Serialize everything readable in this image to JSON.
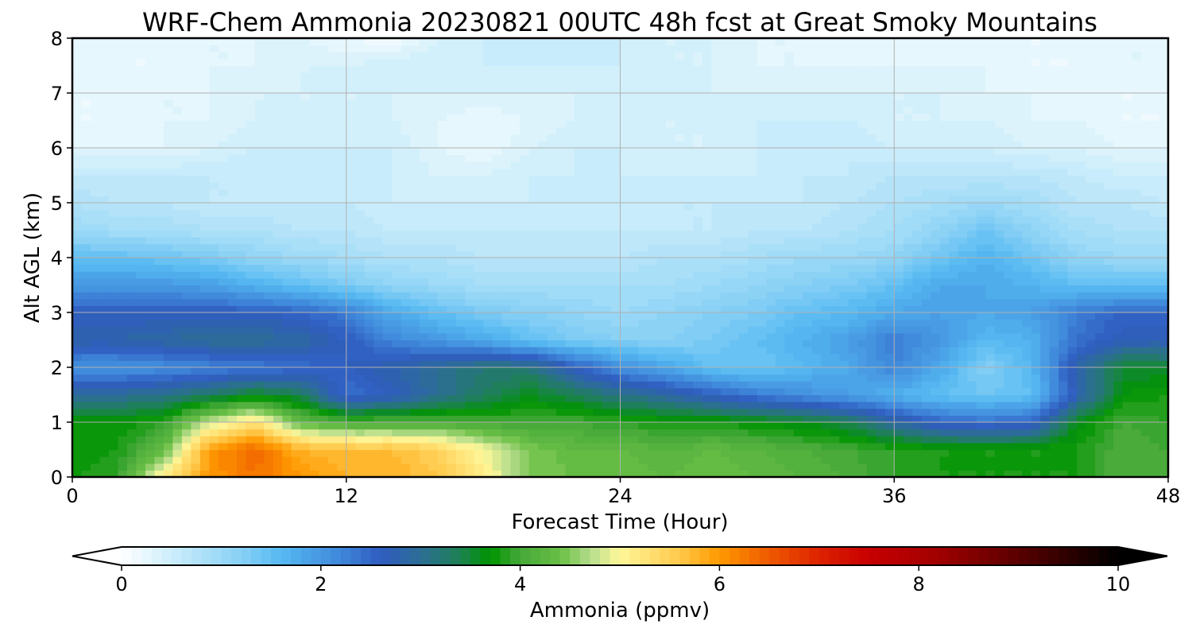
{
  "chart_data": {
    "type": "heatmap",
    "title": "WRF-Chem Ammonia  20230821 00UTC 48h fcst at Great Smoky Mountains",
    "xlabel": "Forecast Time (Hour)",
    "ylabel": "Alt AGL (km)",
    "xlim": [
      0,
      48
    ],
    "ylim": [
      0,
      8
    ],
    "x_ticks": [
      "0",
      "12",
      "24",
      "36",
      "48"
    ],
    "y_ticks": [
      "0",
      "1",
      "2",
      "3",
      "4",
      "5",
      "6",
      "7",
      "8"
    ],
    "grid": true,
    "hours": [
      0,
      2,
      4,
      6,
      8,
      10,
      12,
      14,
      16,
      18,
      20,
      22,
      24,
      26,
      28,
      30,
      32,
      34,
      36,
      38,
      40,
      42,
      44,
      46,
      48
    ],
    "altitudes_km": [
      0,
      0.5,
      1,
      1.5,
      2,
      2.5,
      3,
      3.5,
      4,
      4.5,
      5,
      5.5,
      6,
      6.5,
      7,
      7.5,
      8
    ],
    "values_ppmv": [
      [
        3.8,
        3.9,
        5.2,
        6.0,
        6.3,
        6.0,
        5.8,
        5.8,
        5.6,
        5.1,
        4.5,
        4.4,
        4.4,
        4.3,
        4.4,
        4.3,
        4.2,
        4.1,
        3.9,
        3.8,
        3.8,
        3.8,
        3.8,
        4.1,
        4.0
      ],
      [
        3.7,
        3.8,
        4.3,
        6.0,
        6.4,
        5.8,
        5.7,
        5.7,
        5.5,
        5.0,
        4.5,
        4.3,
        4.3,
        4.2,
        4.3,
        4.2,
        4.1,
        4.0,
        3.9,
        3.8,
        3.8,
        3.8,
        3.8,
        4.1,
        4.0
      ],
      [
        3.7,
        3.7,
        3.9,
        4.8,
        5.3,
        4.3,
        4.1,
        4.1,
        4.1,
        4.0,
        4.0,
        4.0,
        3.9,
        3.8,
        3.8,
        3.7,
        3.6,
        3.4,
        2.9,
        2.5,
        2.4,
        2.5,
        3.6,
        4.0,
        3.9
      ],
      [
        3.0,
        3.0,
        3.1,
        3.3,
        3.6,
        3.4,
        2.4,
        2.6,
        3.0,
        3.3,
        3.6,
        3.4,
        3.1,
        2.9,
        2.6,
        2.3,
        2.1,
        1.9,
        1.7,
        1.5,
        1.4,
        1.5,
        2.7,
        3.7,
        3.8
      ],
      [
        2.0,
        2.0,
        2.1,
        2.2,
        2.3,
        2.4,
        2.6,
        2.8,
        3.0,
        3.2,
        3.2,
        2.6,
        2.1,
        1.8,
        1.5,
        1.4,
        1.6,
        1.8,
        2.2,
        1.8,
        1.2,
        1.6,
        2.8,
        3.5,
        3.5
      ],
      [
        2.8,
        2.8,
        2.9,
        3.0,
        3.0,
        2.9,
        2.6,
        2.2,
        2.0,
        1.8,
        1.5,
        1.3,
        1.2,
        1.2,
        1.3,
        1.5,
        1.7,
        1.9,
        2.3,
        2.0,
        1.6,
        1.7,
        2.4,
        2.7,
        2.7
      ],
      [
        2.6,
        2.6,
        2.6,
        2.6,
        2.6,
        2.5,
        2.3,
        1.8,
        1.5,
        1.3,
        1.2,
        1.1,
        1.0,
        1.1,
        1.2,
        1.3,
        1.5,
        1.6,
        1.8,
        1.9,
        1.8,
        1.9,
        2.3,
        2.5,
        2.5
      ],
      [
        2.0,
        2.0,
        2.0,
        1.9,
        1.7,
        1.5,
        1.3,
        1.1,
        1.0,
        0.9,
        0.9,
        0.9,
        0.9,
        0.9,
        1.0,
        1.1,
        1.2,
        1.3,
        1.5,
        1.8,
        1.8,
        1.7,
        1.5,
        1.5,
        1.5
      ],
      [
        1.5,
        1.5,
        1.4,
        1.3,
        1.1,
        1.0,
        0.9,
        0.8,
        0.8,
        0.7,
        0.7,
        0.7,
        0.7,
        0.8,
        0.8,
        0.9,
        1.0,
        1.0,
        1.1,
        1.4,
        1.7,
        1.4,
        1.1,
        1.0,
        1.0
      ],
      [
        1.0,
        0.9,
        0.9,
        0.8,
        0.8,
        0.7,
        0.7,
        0.6,
        0.6,
        0.6,
        0.6,
        0.6,
        0.6,
        0.6,
        0.6,
        0.7,
        0.7,
        0.8,
        0.9,
        1.1,
        1.4,
        1.1,
        0.9,
        0.8,
        0.8
      ],
      [
        0.8,
        0.7,
        0.7,
        0.6,
        0.6,
        0.6,
        0.6,
        0.5,
        0.5,
        0.5,
        0.5,
        0.5,
        0.5,
        0.6,
        0.6,
        0.6,
        0.6,
        0.7,
        0.8,
        0.9,
        1.0,
        0.9,
        0.7,
        0.7,
        0.6
      ],
      [
        0.6,
        0.6,
        0.6,
        0.6,
        0.6,
        0.5,
        0.5,
        0.5,
        0.4,
        0.4,
        0.5,
        0.5,
        0.5,
        0.5,
        0.5,
        0.5,
        0.6,
        0.6,
        0.7,
        0.7,
        0.7,
        0.7,
        0.6,
        0.5,
        0.5
      ],
      [
        0.3,
        0.3,
        0.3,
        0.4,
        0.5,
        0.5,
        0.5,
        0.5,
        0.3,
        0.2,
        0.4,
        0.5,
        0.5,
        0.4,
        0.4,
        0.5,
        0.6,
        0.6,
        0.5,
        0.5,
        0.5,
        0.4,
        0.4,
        0.3,
        0.3
      ],
      [
        0.2,
        0.2,
        0.3,
        0.3,
        0.4,
        0.4,
        0.4,
        0.4,
        0.3,
        0.2,
        0.3,
        0.4,
        0.5,
        0.4,
        0.4,
        0.5,
        0.5,
        0.5,
        0.4,
        0.4,
        0.4,
        0.3,
        0.3,
        0.2,
        0.2
      ],
      [
        0.2,
        0.2,
        0.3,
        0.3,
        0.4,
        0.4,
        0.4,
        0.4,
        0.4,
        0.4,
        0.4,
        0.4,
        0.5,
        0.5,
        0.4,
        0.4,
        0.4,
        0.4,
        0.4,
        0.4,
        0.3,
        0.3,
        0.2,
        0.2,
        0.2
      ],
      [
        0.3,
        0.2,
        0.2,
        0.3,
        0.3,
        0.4,
        0.4,
        0.5,
        0.5,
        0.5,
        0.5,
        0.5,
        0.5,
        0.4,
        0.4,
        0.3,
        0.3,
        0.3,
        0.3,
        0.3,
        0.3,
        0.2,
        0.2,
        0.3,
        0.3
      ],
      [
        0.3,
        0.2,
        0.2,
        0.3,
        0.3,
        0.3,
        0.2,
        0.1,
        0.4,
        0.5,
        0.5,
        0.5,
        0.5,
        0.4,
        0.4,
        0.3,
        0.3,
        0.3,
        0.3,
        0.3,
        0.2,
        0.2,
        0.2,
        0.3,
        0.3
      ]
    ],
    "colorbar": {
      "label": "Ammonia  (ppmv)",
      "min": 0,
      "max": 10,
      "ticks": [
        "0",
        "2",
        "4",
        "6",
        "8",
        "10"
      ],
      "extend": "both",
      "levels": 100,
      "color_stops": [
        [
          0,
          "#ffffff"
        ],
        [
          0.5,
          "#cdeefb"
        ],
        [
          1.2,
          "#87d0f5"
        ],
        [
          1.6,
          "#56b9f2"
        ],
        [
          2.2,
          "#3f87da"
        ],
        [
          2.6,
          "#2f5cc0"
        ],
        [
          3.0,
          "#2d6d95"
        ],
        [
          3.4,
          "#1d8253"
        ],
        [
          3.7,
          "#009400"
        ],
        [
          4.0,
          "#45a83a"
        ],
        [
          4.4,
          "#6abf45"
        ],
        [
          4.7,
          "#b4dc8a"
        ],
        [
          5.0,
          "#fff79a"
        ],
        [
          5.6,
          "#ffc94a"
        ],
        [
          6.0,
          "#ff9900"
        ],
        [
          6.5,
          "#ef5a00"
        ],
        [
          7.0,
          "#dd2200"
        ],
        [
          7.5,
          "#c80000"
        ],
        [
          8.2,
          "#a00000"
        ],
        [
          9.0,
          "#5a0000"
        ],
        [
          10.0,
          "#000000"
        ]
      ]
    }
  }
}
